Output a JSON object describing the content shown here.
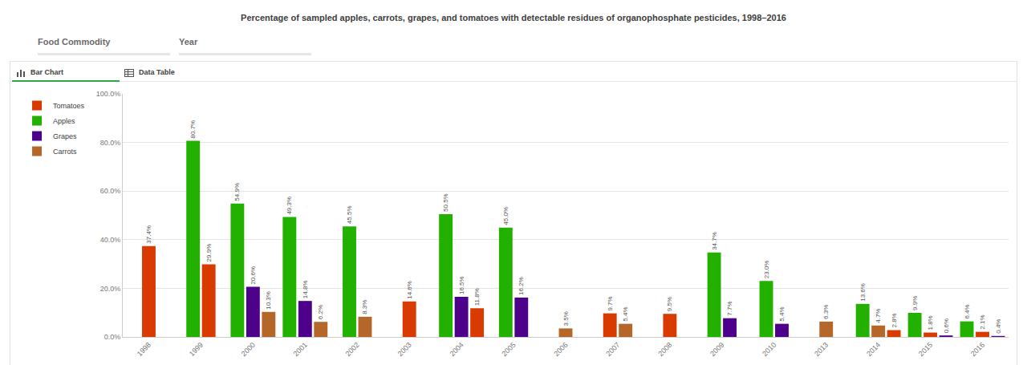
{
  "chart_data": {
    "type": "bar",
    "title": "Percentage of sampled apples, carrots, grapes, and tomatoes with detectable residues of organophosphate pesticides, 1998–2016",
    "annotations": [
      "Food Commodity",
      "Year",
      "Bar Chart",
      "Data Table"
    ],
    "categories": [
      "1998",
      "1999",
      "2000",
      "2001",
      "2002",
      "2003",
      "2004",
      "2005",
      "2006",
      "2007",
      "2008",
      "2009",
      "2010",
      "2013",
      "2014",
      "2015",
      "2016"
    ],
    "series": [
      {
        "name": "Tomatoes",
        "color": "#d93a00",
        "values": [
          37.4,
          29.9,
          null,
          null,
          null,
          14.6,
          11.8,
          null,
          null,
          9.7,
          9.5,
          null,
          null,
          null,
          2.8,
          1.8,
          2.1
        ],
        "value_labels": [
          "37.4%",
          "29.9%",
          null,
          null,
          null,
          "14.6%",
          "11.8%",
          null,
          null,
          "9.7%",
          "9.5%",
          null,
          null,
          null,
          "2.8%",
          "1.8%",
          "2.1%"
        ]
      },
      {
        "name": "Apples",
        "color": "#23b100",
        "values": [
          null,
          80.7,
          54.9,
          49.3,
          45.5,
          null,
          50.5,
          45.0,
          null,
          null,
          null,
          34.7,
          23.0,
          null,
          13.6,
          9.9,
          6.4
        ],
        "value_labels": [
          null,
          "80.7%",
          "54.9%",
          "49.3%",
          "45.5%",
          null,
          "50.5%",
          "45.0%",
          null,
          null,
          null,
          "34.7%",
          "23.0%",
          null,
          "13.6%",
          "9.9%",
          "6.4%"
        ]
      },
      {
        "name": "Grapes",
        "color": "#4d0089",
        "values": [
          null,
          null,
          20.6,
          14.8,
          null,
          null,
          16.5,
          16.2,
          null,
          null,
          null,
          7.7,
          5.4,
          null,
          null,
          0.6,
          0.4
        ],
        "value_labels": [
          null,
          null,
          "20.6%",
          "14.8%",
          null,
          null,
          "16.5%",
          "16.2%",
          null,
          null,
          null,
          "7.7%",
          "5.4%",
          null,
          null,
          "0.6%",
          "0.4%"
        ]
      },
      {
        "name": "Carrots",
        "color": "#b5672a",
        "values": [
          null,
          null,
          10.3,
          6.2,
          8.3,
          null,
          null,
          null,
          3.5,
          5.4,
          null,
          null,
          null,
          6.3,
          4.7,
          null,
          null
        ],
        "value_labels": [
          null,
          null,
          "10.3%",
          "6.2%",
          "8.3%",
          null,
          null,
          null,
          "3.5%",
          "5.4%",
          null,
          null,
          null,
          "6.3%",
          "4.7%",
          null,
          null
        ]
      }
    ],
    "ylim": [
      0,
      100
    ],
    "yticks": [
      {
        "value": 0,
        "label": "0.0%"
      },
      {
        "value": 20,
        "label": "20.0%"
      },
      {
        "value": 40,
        "label": "40.0%"
      },
      {
        "value": 60,
        "label": "60.0%"
      },
      {
        "value": 80,
        "label": "80.0%"
      },
      {
        "value": 100,
        "label": "100.0%"
      }
    ],
    "grid": true,
    "legend": "upper left",
    "data_labels": true
  }
}
